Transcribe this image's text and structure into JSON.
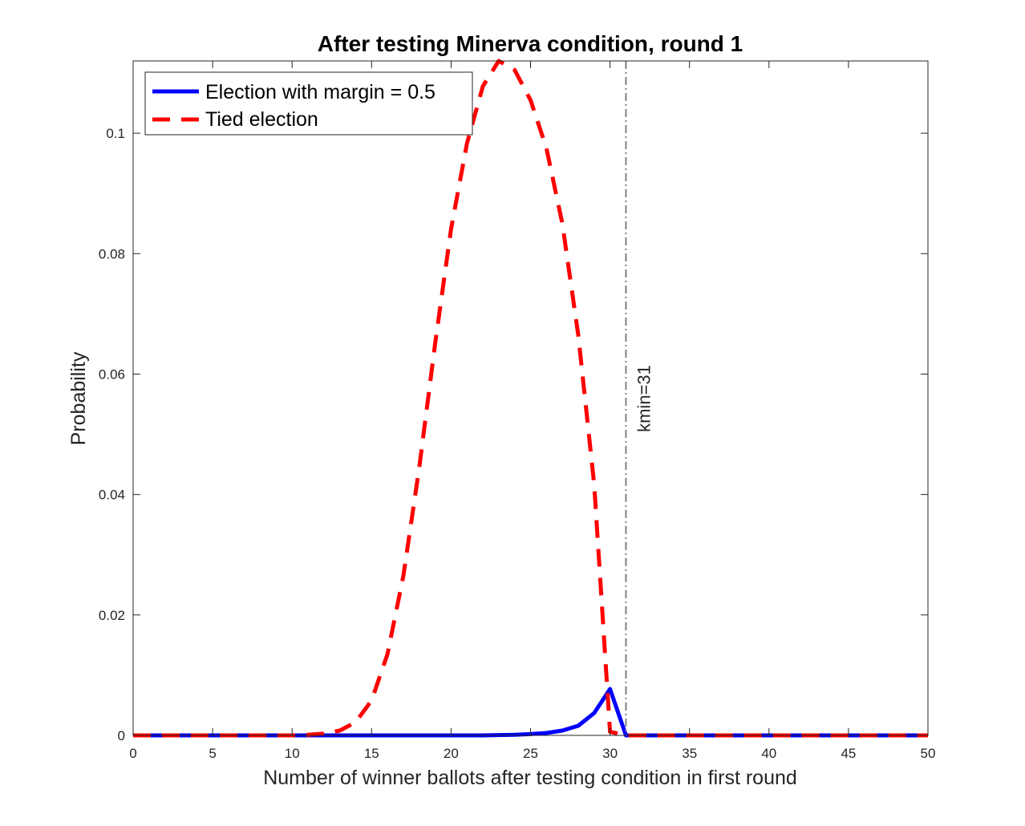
{
  "chart_data": {
    "type": "line",
    "title": "After testing Minerva condition, round 1",
    "xlabel": "Number of winner ballots after testing condition in first round",
    "ylabel": "Probability",
    "xlim": [
      0,
      50
    ],
    "ylim": [
      0,
      0.112
    ],
    "xticks": [
      0,
      5,
      10,
      15,
      20,
      25,
      30,
      35,
      40,
      45,
      50
    ],
    "xtick_labels": [
      "0",
      "5",
      "10",
      "15",
      "20",
      "25",
      "30",
      "35",
      "40",
      "45",
      "50"
    ],
    "yticks": [
      0,
      0.02,
      0.04,
      0.06,
      0.08,
      0.1
    ],
    "ytick_labels": [
      "0",
      "0.02",
      "0.04",
      "0.06",
      "0.08",
      "0.1"
    ],
    "grid": false,
    "legend_position": "top-left",
    "series": [
      {
        "name": "Election with margin = 0.5",
        "color": "#0000ff",
        "style": "solid",
        "x": [
          0,
          1,
          2,
          3,
          4,
          5,
          6,
          7,
          8,
          9,
          10,
          11,
          12,
          13,
          14,
          15,
          16,
          17,
          18,
          19,
          20,
          21,
          22,
          23,
          24,
          25,
          26,
          27,
          28,
          29,
          30,
          31,
          32,
          33,
          34,
          35,
          36,
          37,
          38,
          39,
          40,
          41,
          42,
          43,
          44,
          45,
          46,
          47,
          48,
          49,
          50
        ],
        "y": [
          0,
          0,
          0,
          0,
          0,
          0,
          0,
          0,
          0,
          0,
          0,
          0,
          0,
          0,
          0,
          0,
          0,
          0,
          0,
          0,
          0,
          0,
          0,
          5e-05,
          0.0001,
          0.00022,
          0.0004,
          0.0008,
          0.0016,
          0.0037,
          0.0077,
          0,
          0,
          0,
          0,
          0,
          0,
          0,
          0,
          0,
          0,
          0,
          0,
          0,
          0,
          0,
          0,
          0,
          0,
          0,
          0
        ]
      },
      {
        "name": "Tied election",
        "color": "#ff0000",
        "style": "dashed",
        "x": [
          0,
          1,
          2,
          3,
          4,
          5,
          6,
          7,
          8,
          9,
          10,
          11,
          12,
          13,
          14,
          15,
          16,
          17,
          18,
          19,
          20,
          21,
          22,
          23,
          24,
          25,
          26,
          27,
          28,
          29,
          30,
          31,
          32,
          33,
          34,
          35,
          36,
          37,
          38,
          39,
          40,
          41,
          42,
          43,
          44,
          45,
          46,
          47,
          48,
          49,
          50
        ],
        "y": [
          0,
          0,
          0,
          0,
          0,
          0,
          0,
          0,
          0,
          0,
          0,
          0.0001,
          0.0003,
          0.0008,
          0.0022,
          0.0058,
          0.0135,
          0.0265,
          0.0445,
          0.0651,
          0.0841,
          0.0983,
          0.1078,
          0.112,
          0.1105,
          0.1055,
          0.0975,
          0.085,
          0.0665,
          0.0418,
          0.0006,
          0,
          0,
          0,
          0,
          0,
          0,
          0,
          0,
          0,
          0,
          0,
          0,
          0,
          0,
          0,
          0,
          0,
          0,
          0,
          0
        ]
      }
    ],
    "reference_line": {
      "x": 31,
      "label": "kmin=31",
      "color": "#808080",
      "style": "dash-dot"
    }
  }
}
